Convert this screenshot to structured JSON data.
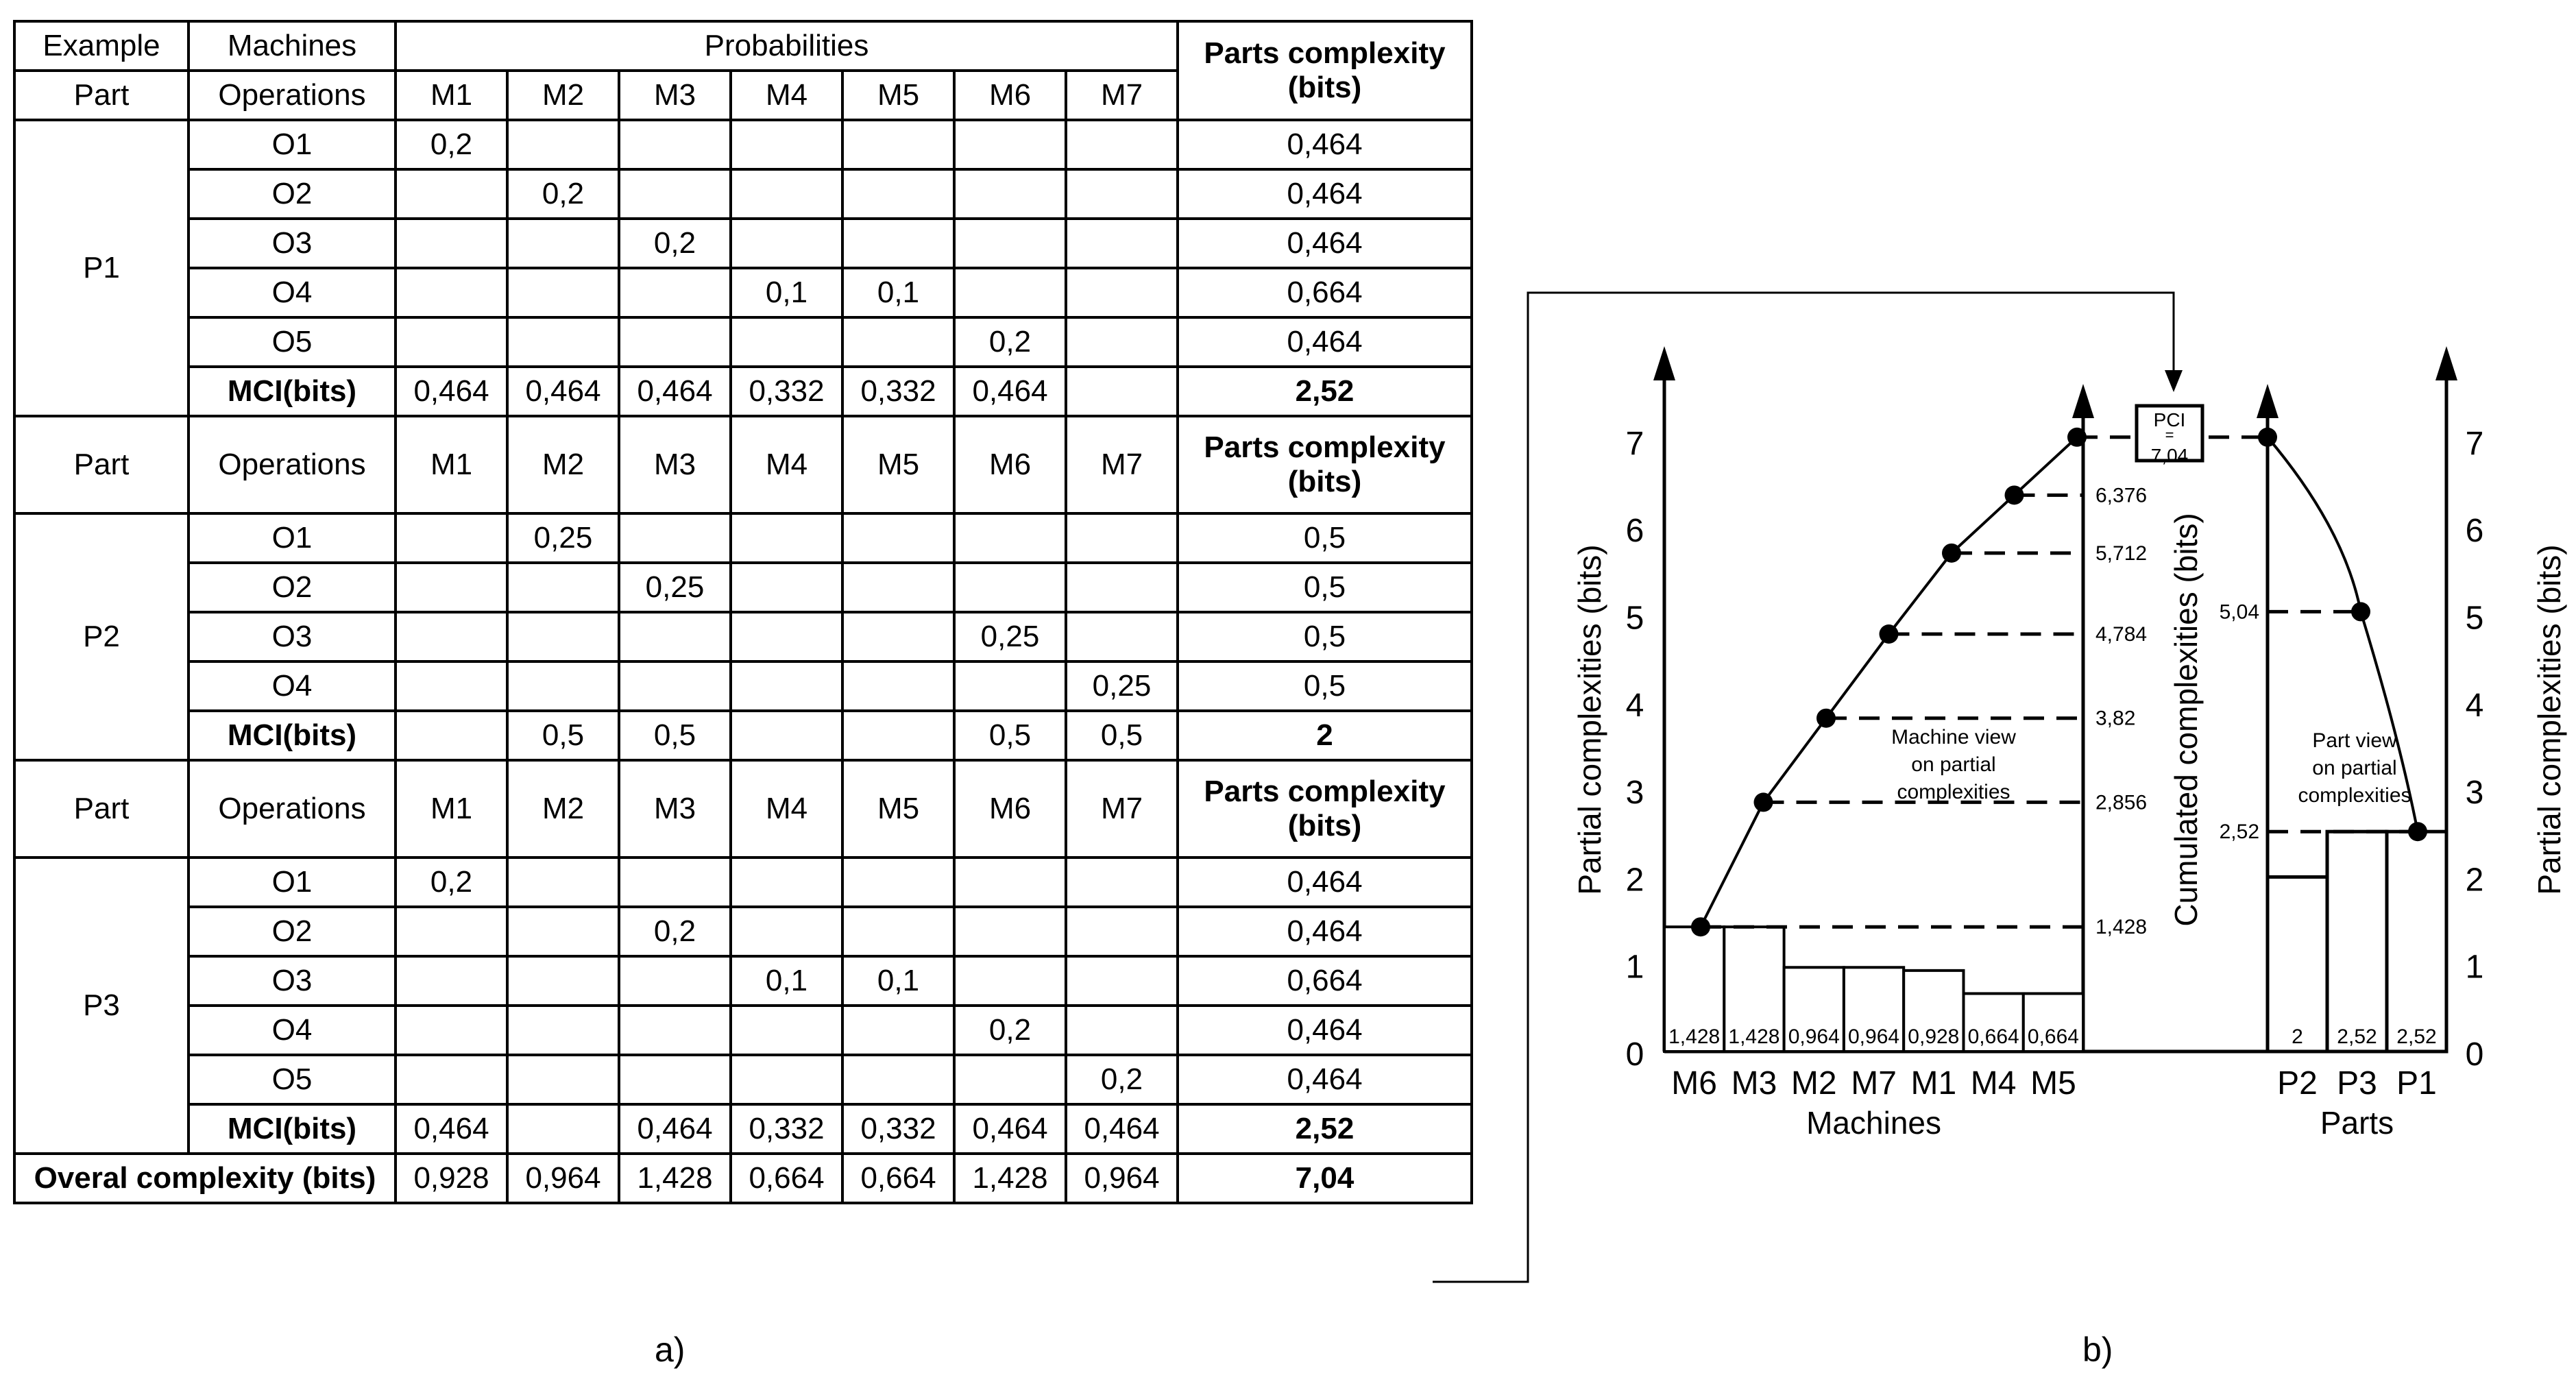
{
  "table": {
    "header1": [
      "Example",
      "Machines",
      "Probabilities",
      "Parts complexity (bits)"
    ],
    "header_part": "Part",
    "header_ops": "Operations",
    "machines": [
      "M1",
      "M2",
      "M3",
      "M4",
      "M5",
      "M6",
      "M7"
    ],
    "parts_header": "Parts complexity (bits)",
    "mci_label": "MCI(bits)",
    "parts": [
      {
        "name": "P1",
        "ops": [
          {
            "op": "O1",
            "p": [
              "0,2",
              "",
              "",
              "",
              "",
              "",
              ""
            ],
            "c": "0,464"
          },
          {
            "op": "O2",
            "p": [
              "",
              "0,2",
              "",
              "",
              "",
              "",
              ""
            ],
            "c": "0,464"
          },
          {
            "op": "O3",
            "p": [
              "",
              "",
              "0,2",
              "",
              "",
              "",
              ""
            ],
            "c": "0,464"
          },
          {
            "op": "O4",
            "p": [
              "",
              "",
              "",
              "0,1",
              "0,1",
              "",
              ""
            ],
            "c": "0,664"
          },
          {
            "op": "O5",
            "p": [
              "",
              "",
              "",
              "",
              "",
              "0,2",
              ""
            ],
            "c": "0,464"
          }
        ],
        "mci": [
          "0,464",
          "0,464",
          "0,464",
          "0,332",
          "0,332",
          "0,464",
          ""
        ],
        "total": "2,52"
      },
      {
        "name": "P2",
        "ops": [
          {
            "op": "O1",
            "p": [
              "",
              "0,25",
              "",
              "",
              "",
              "",
              ""
            ],
            "c": "0,5"
          },
          {
            "op": "O2",
            "p": [
              "",
              "",
              "0,25",
              "",
              "",
              "",
              ""
            ],
            "c": "0,5"
          },
          {
            "op": "O3",
            "p": [
              "",
              "",
              "",
              "",
              "",
              "0,25",
              ""
            ],
            "c": "0,5"
          },
          {
            "op": "O4",
            "p": [
              "",
              "",
              "",
              "",
              "",
              "",
              "0,25"
            ],
            "c": "0,5"
          }
        ],
        "mci": [
          "",
          "0,5",
          "0,5",
          "",
          "",
          "0,5",
          "0,5"
        ],
        "total": "2"
      },
      {
        "name": "P3",
        "ops": [
          {
            "op": "O1",
            "p": [
              "0,2",
              "",
              "",
              "",
              "",
              "",
              ""
            ],
            "c": "0,464"
          },
          {
            "op": "O2",
            "p": [
              "",
              "",
              "0,2",
              "",
              "",
              "",
              ""
            ],
            "c": "0,464"
          },
          {
            "op": "O3",
            "p": [
              "",
              "",
              "",
              "0,1",
              "0,1",
              "",
              ""
            ],
            "c": "0,664"
          },
          {
            "op": "O4",
            "p": [
              "",
              "",
              "",
              "",
              "",
              "0,2",
              ""
            ],
            "c": "0,464"
          },
          {
            "op": "O5",
            "p": [
              "",
              "",
              "",
              "",
              "",
              "",
              "0,2"
            ],
            "c": "0,464"
          }
        ],
        "mci": [
          "0,464",
          "",
          "0,464",
          "0,332",
          "0,332",
          "0,464",
          "0,464"
        ],
        "total": "2,52"
      }
    ],
    "overall_label": "Overal complexity (bits)",
    "overall": [
      "0,928",
      "0,964",
      "1,428",
      "0,664",
      "0,664",
      "1,428",
      "0,964"
    ],
    "overall_total": "7,04"
  },
  "captions": {
    "a": "a)",
    "b": "b)"
  },
  "chart_data": {
    "type": "bar",
    "y_ticks": [
      "0",
      "1",
      "2",
      "3",
      "4",
      "5",
      "6",
      "7"
    ],
    "ylim": [
      0,
      7.5
    ],
    "ylabel_left": "Partial complexities (bits)",
    "ylabel_middle": "Cumulated complexities (bits)",
    "ylabel_right": "Partial complexities (bits)",
    "machines": {
      "xlabel": "Machines",
      "categories": [
        "M6",
        "M3",
        "M2",
        "M7",
        "M1",
        "M4",
        "M5"
      ],
      "values": [
        1.428,
        1.428,
        0.964,
        0.964,
        0.928,
        0.664,
        0.664
      ],
      "value_labels": [
        "1,428",
        "1,428",
        "0,964",
        "0,964",
        "0,928",
        "0,664",
        "0,664"
      ],
      "cumulative": [
        1.428,
        2.856,
        3.82,
        4.784,
        5.712,
        6.376,
        7.04
      ],
      "cumulative_labels": [
        "1,428",
        "2,856",
        "3,82",
        "4,784",
        "5,712",
        "6,376"
      ],
      "annotation": [
        "Machine view",
        "on partial",
        "complexities"
      ]
    },
    "parts": {
      "xlabel": "Parts",
      "categories": [
        "P2",
        "P3",
        "P1"
      ],
      "values": [
        2,
        2.52,
        2.52
      ],
      "value_labels": [
        "2",
        "2,52",
        "2,52"
      ],
      "cumulative": [
        7.04,
        5.04,
        2.52
      ],
      "cumulative_labels": [
        "",
        "5,04",
        "2,52"
      ],
      "annotation": [
        "Part view",
        "on partial",
        "complexities"
      ]
    },
    "pci_box": [
      "PCI",
      "=",
      "7,04"
    ]
  }
}
